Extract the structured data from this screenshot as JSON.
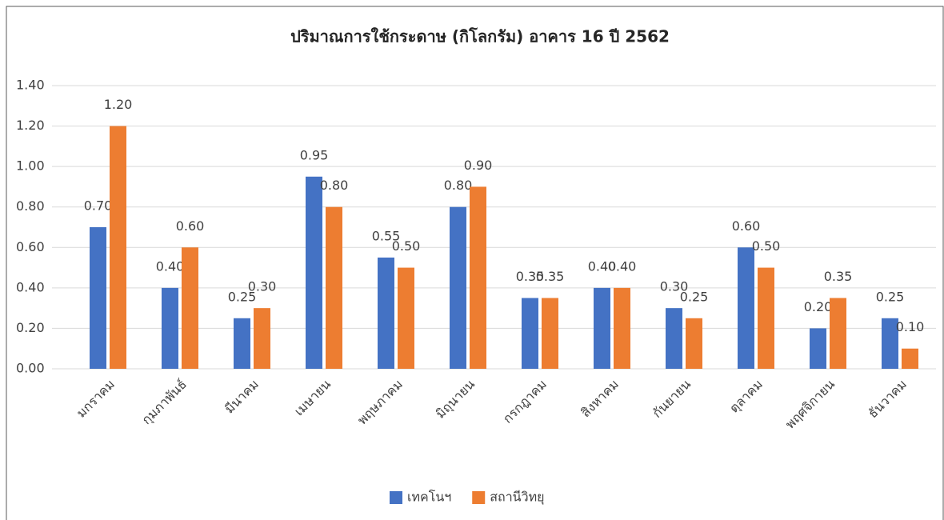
{
  "chart_data": {
    "type": "bar",
    "title": "ปริมาณการใช้กระดาษ (กิโลกรัม) อาคาร 16 ปี 2562",
    "categories": [
      "มกราคม",
      "กุมภาพันธ์",
      "มีนาคม",
      "เมษายน",
      "พฤษภาคม",
      "มิถุนายน",
      "กรกฎาคม",
      "สิงหาคม",
      "กันยายน",
      "ตุลาคม",
      "พฤศจิกายน",
      "ธันวาคม"
    ],
    "series": [
      {
        "name": "เทคโนฯ",
        "color": "#4472c4",
        "values": [
          0.7,
          0.4,
          0.25,
          0.95,
          0.55,
          0.8,
          0.35,
          0.4,
          0.3,
          0.6,
          0.2,
          0.25
        ],
        "value_labels": [
          "0.70",
          "0.40",
          "0.25",
          "0.95",
          "0.55",
          "0.80",
          "0.35",
          "0.40",
          "0.30",
          "0.60",
          "0.20",
          "0.25"
        ]
      },
      {
        "name": "สถานีวิทยุ",
        "color": "#ed7d31",
        "values": [
          1.2,
          0.6,
          0.3,
          0.8,
          0.5,
          0.9,
          0.35,
          0.4,
          0.25,
          0.5,
          0.35,
          0.1
        ],
        "value_labels": [
          "1.20",
          "0.60",
          "0.30",
          "0.80",
          "0.50",
          "0.90",
          "0.35",
          "0.40",
          "0.25",
          "0.50",
          "0.35",
          "0.10"
        ]
      }
    ],
    "ylim": [
      0,
      1.4
    ],
    "yticks": [
      {
        "value": 0,
        "label": "0.00"
      },
      {
        "value": 0.2,
        "label": "0.20"
      },
      {
        "value": 0.4,
        "label": "0.40"
      },
      {
        "value": 0.6,
        "label": "0.60"
      },
      {
        "value": 0.8,
        "label": "0.80"
      },
      {
        "value": 1.0,
        "label": "1.00"
      },
      {
        "value": 1.2,
        "label": "1.20"
      },
      {
        "value": 1.4,
        "label": "1.40"
      }
    ],
    "grid": true,
    "legend": "bottom"
  }
}
